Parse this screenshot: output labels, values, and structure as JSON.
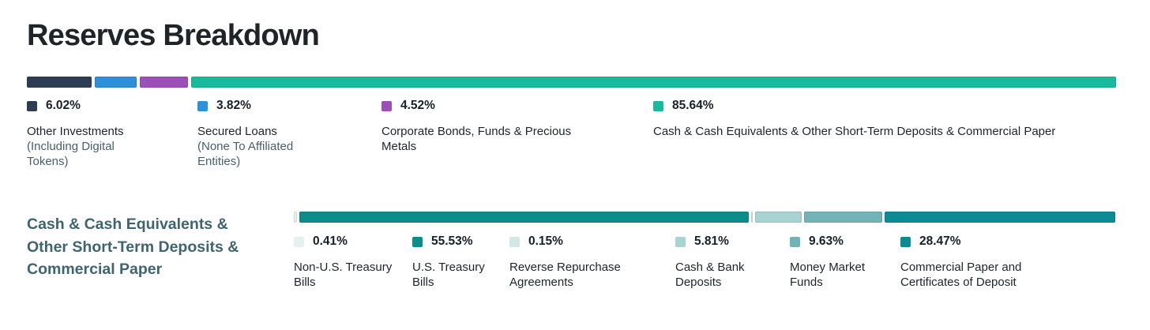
{
  "page": {
    "title": "Reserves Breakdown"
  },
  "chart_data": [
    {
      "type": "bar",
      "stacked": true,
      "orientation": "horizontal",
      "title": "Reserves Breakdown",
      "unit": "%",
      "categories": [
        "Other Investments (Including Digital Tokens)",
        "Secured Loans (None To Affiliated Entities)",
        "Corporate Bonds, Funds & Precious Metals",
        "Cash & Cash Equivalents & Other Short-Term Deposits & Commercial Paper"
      ],
      "values": [
        6.02,
        3.82,
        4.52,
        85.64
      ],
      "colors": [
        "#2d3e54",
        "#2e90d8",
        "#9d4fb8",
        "#17bb9b"
      ],
      "legend_position": "below",
      "xlim": [
        0,
        100
      ]
    },
    {
      "type": "bar",
      "stacked": true,
      "orientation": "horizontal",
      "title": "Cash & Cash Equivalents & Other Short-Term Deposits & Commercial Paper",
      "unit": "%",
      "categories": [
        "Non-U.S. Treasury Bills",
        "U.S. Treasury Bills",
        "Reverse Repurchase Agreements",
        "Cash & Bank Deposits",
        "Money Market Funds",
        "Commercial Paper and Certificates of Deposit"
      ],
      "values": [
        0.41,
        55.53,
        0.15,
        5.81,
        9.63,
        28.47
      ],
      "colors": [
        "#e4f1ee",
        "#0d8c8c",
        "#d2e8e5",
        "#a9d2d2",
        "#71b3b7",
        "#0b8b93"
      ],
      "legend_position": "below",
      "xlim": [
        0,
        100
      ]
    }
  ],
  "top_section": {
    "legend": [
      {
        "percent": "6.02%",
        "primary": "Other Investments",
        "secondary": "(Including Digital Tokens)",
        "color": "#2d3e54"
      },
      {
        "percent": "3.82%",
        "primary": "Secured Loans",
        "secondary": "(None To Affiliated Entities)",
        "color": "#2e90d8"
      },
      {
        "percent": "4.52%",
        "primary": "Corporate Bonds, Funds & Precious Metals",
        "color": "#9d4fb8"
      },
      {
        "percent": "85.64%",
        "primary": "Cash & Cash Equivalents & Other Short-Term Deposits & Commercial Paper",
        "color": "#17bb9b"
      }
    ]
  },
  "cash_section": {
    "heading": "Cash & Cash Equivalents & Other Short-Term Deposits & Commercial Paper",
    "legend": [
      {
        "percent": "0.41%",
        "primary": "Non-U.S. Treasury Bills",
        "color": "#e4f1ee"
      },
      {
        "percent": "55.53%",
        "primary": "U.S. Treasury Bills",
        "color": "#0d8c8c"
      },
      {
        "percent": "0.15%",
        "primary": "Reverse Repurchase Agreements",
        "color": "#d2e8e5"
      },
      {
        "percent": "5.81%",
        "primary": "Cash & Bank Deposits",
        "color": "#a9d2d2"
      },
      {
        "percent": "9.63%",
        "primary": "Money Market Funds",
        "color": "#71b3b7"
      },
      {
        "percent": "28.47%",
        "primary": "Commercial Paper and Certificates of Deposit",
        "color": "#0b8b93"
      }
    ]
  }
}
